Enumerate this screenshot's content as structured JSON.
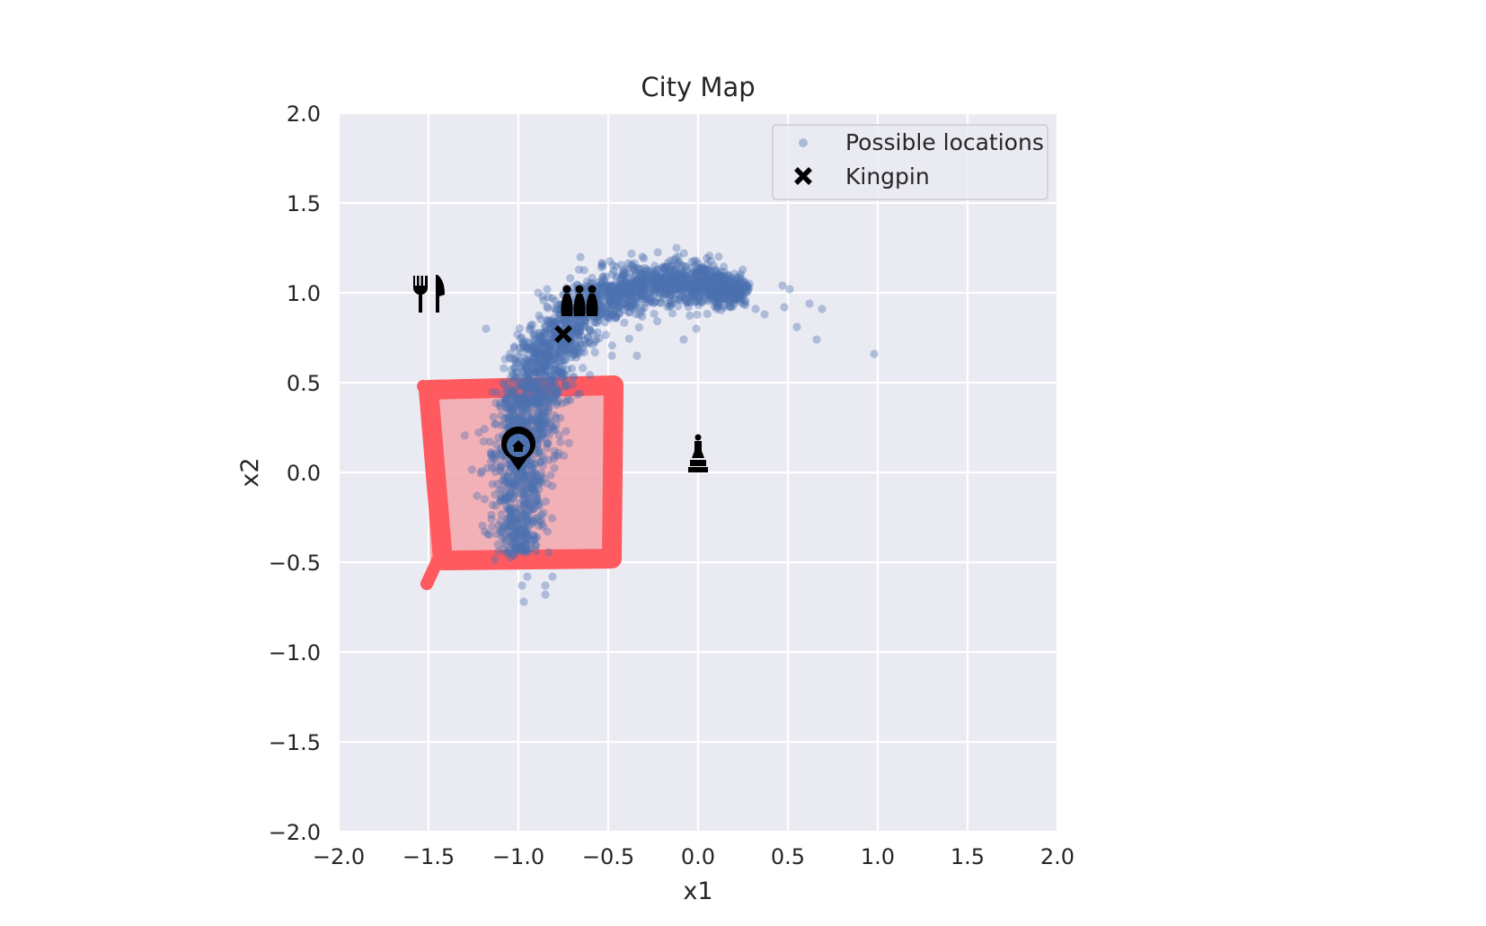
{
  "chart_data": {
    "type": "scatter",
    "title": "City Map",
    "xlabel": "x1",
    "ylabel": "x2",
    "xlim": [
      -2.0,
      2.0
    ],
    "ylim": [
      -2.0,
      2.0
    ],
    "xticks": [
      "−2.0",
      "−1.5",
      "−1.0",
      "−0.5",
      "0.0",
      "0.5",
      "1.0",
      "1.5",
      "2.0"
    ],
    "yticks": [
      "2.0",
      "1.5",
      "1.0",
      "0.5",
      "0.0",
      "−0.5",
      "−1.0",
      "−1.5",
      "−2.0"
    ],
    "grid": true,
    "legend_position": "top-right",
    "colors": {
      "background": "#eaeaf2",
      "grid": "#ffffff",
      "points": "#4c72b0",
      "highlight_edge": "#ff5a5f",
      "highlight_fill": "#f2a7ad",
      "landmarks": "#000000"
    },
    "series": [
      {
        "name": "Possible locations",
        "marker": "dot",
        "description_shape": "crescent",
        "outliers": [
          [
            0.98,
            0.66
          ],
          [
            0.66,
            0.74
          ],
          [
            0.55,
            0.81
          ],
          [
            0.69,
            0.91
          ],
          [
            0.62,
            0.94
          ],
          [
            0.47,
            1.04
          ],
          [
            0.51,
            1.02
          ],
          [
            0.48,
            0.92
          ],
          [
            0.37,
            0.88
          ],
          [
            0.32,
            0.91
          ],
          [
            -0.01,
            0.8
          ],
          [
            -0.08,
            0.74
          ],
          [
            -0.34,
            0.65
          ],
          [
            -0.48,
            0.65
          ],
          [
            -0.95,
            -0.58
          ],
          [
            -0.98,
            -0.63
          ],
          [
            -0.85,
            -0.63
          ],
          [
            -0.81,
            -0.58
          ],
          [
            -0.97,
            -0.72
          ],
          [
            -0.85,
            -0.68
          ],
          [
            -1.13,
            0.09
          ],
          [
            -1.23,
            -0.13
          ],
          [
            -1.04,
            0.57
          ],
          [
            -1.05,
            0.64
          ],
          [
            -1.18,
            0.8
          ],
          [
            -0.89,
            1.0
          ],
          [
            -0.84,
            1.02
          ],
          [
            -0.12,
            1.25
          ],
          [
            -0.78,
            0.78
          ]
        ]
      },
      {
        "name": "Kingpin",
        "marker": "x",
        "points": [
          [
            -0.75,
            0.77
          ]
        ]
      }
    ],
    "highlight_region": {
      "x": [
        -1.55,
        -0.45
      ],
      "y": [
        -0.5,
        0.5
      ]
    },
    "landmarks": [
      {
        "icon": "restaurant-icon",
        "x": -1.5,
        "y": 1.0
      },
      {
        "icon": "bowling-icon",
        "x": -0.66,
        "y": 0.95
      },
      {
        "icon": "home-pin-icon",
        "x": -1.0,
        "y": 0.14
      },
      {
        "icon": "chess-pawn-icon",
        "x": 0.0,
        "y": 0.11
      }
    ]
  }
}
